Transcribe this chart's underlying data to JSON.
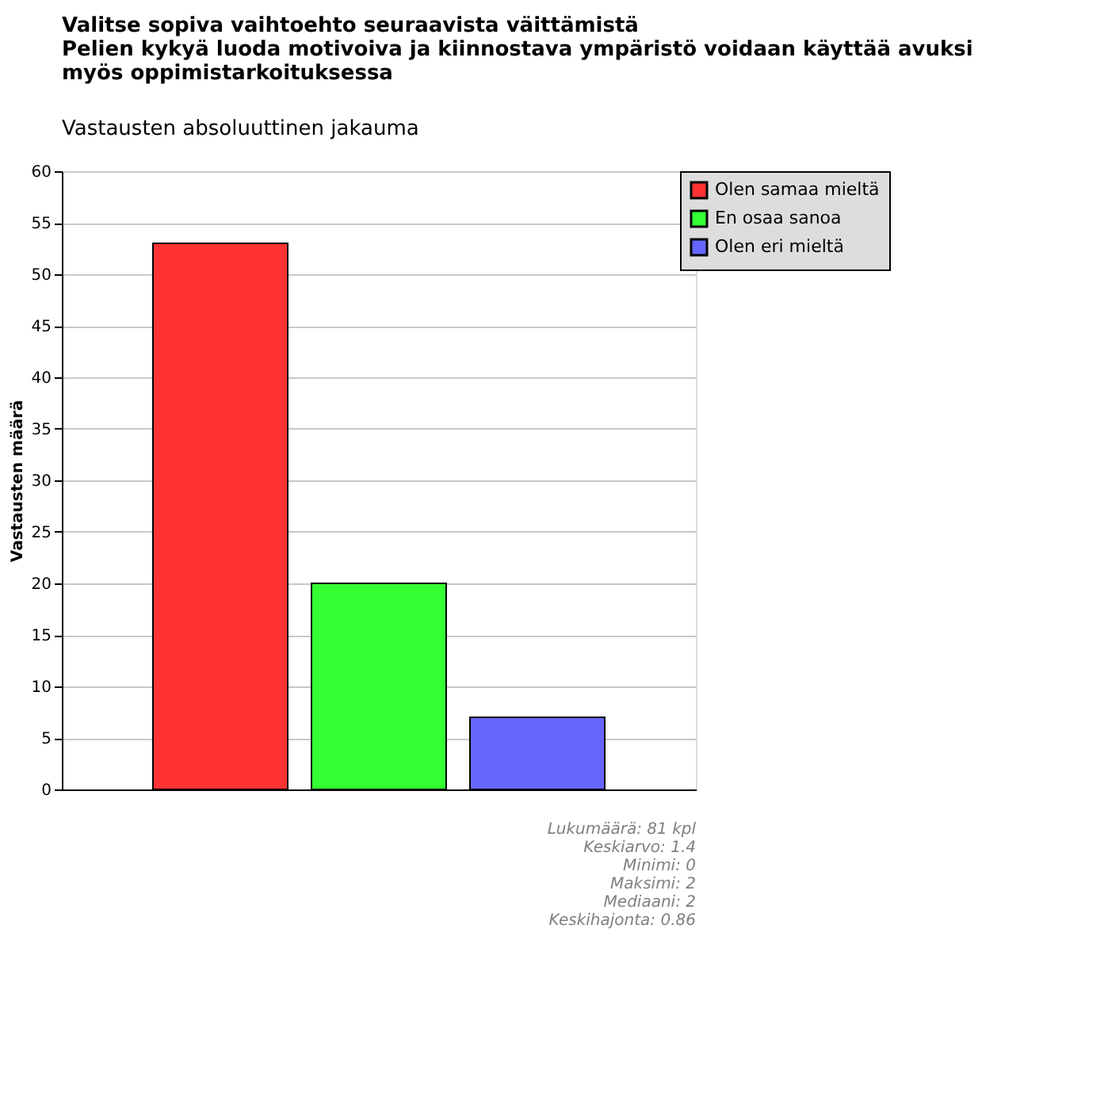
{
  "chart_data": {
    "type": "bar",
    "title": "Valitse sopiva vaihtoehto seuraavista väittämistä\nPelien kykyä luoda motivoiva ja kiinnostava ympäristö voidaan käyttää avuksi\nmyös oppimistarkoituksessa",
    "subtitle": "Vastausten absoluuttinen jakauma",
    "ylabel": "Vastausten määrä",
    "categories": [
      null,
      null,
      null
    ],
    "series": [
      {
        "name": "Olen samaa mieltä",
        "color": "#ff3333",
        "values": [
          53,
          null,
          null
        ]
      },
      {
        "name": "En osaa sanoa",
        "color": "#33ff33",
        "values": [
          null,
          20,
          null
        ]
      },
      {
        "name": "Olen eri mieltä",
        "color": "#6666ff",
        "values": [
          null,
          null,
          7
        ]
      }
    ],
    "ylim": [
      0,
      60
    ],
    "yticks": [
      0,
      5,
      10,
      15,
      20,
      25,
      30,
      35,
      40,
      45,
      50,
      55,
      60
    ],
    "grid": "y",
    "legend": "top right",
    "tick_labels": "y",
    "annotations": [
      "Lukumäärä: 81 kpl",
      "Keskiarvo: 1.4",
      "Minimi: 0",
      "Maksimi: 2",
      "Mediaani: 2",
      "Keskihajonta: 0.86"
    ]
  }
}
